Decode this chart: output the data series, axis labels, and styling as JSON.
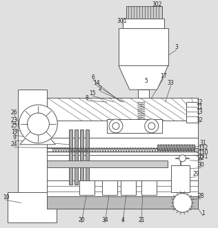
{
  "bg_color": "#e0e0e0",
  "line_color": "#555555",
  "line_width": 0.7,
  "figsize": [
    3.16,
    3.31
  ],
  "dpi": 100
}
